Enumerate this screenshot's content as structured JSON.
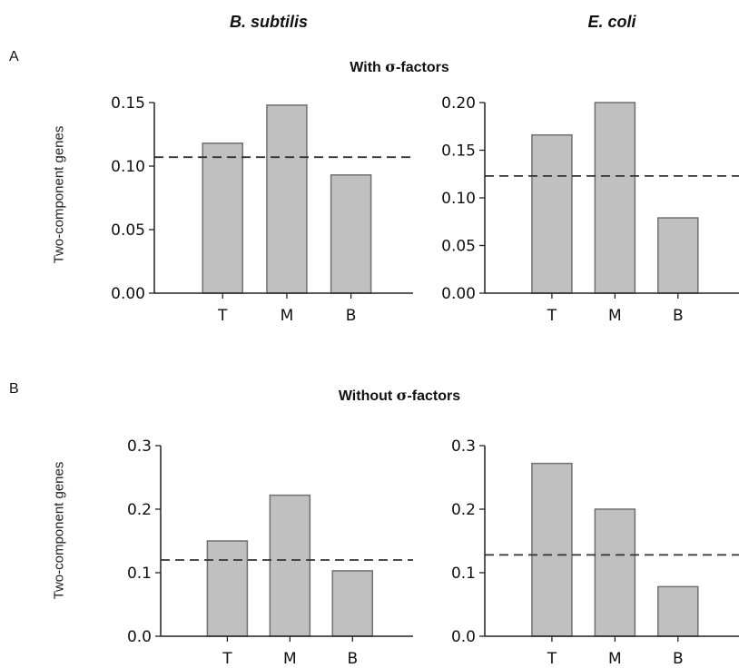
{
  "columns": [
    "B. subtilis",
    "E. coli"
  ],
  "panels": [
    {
      "letter": "A",
      "title_prefix": "With ",
      "title_sigma": "σ",
      "title_suffix": "-factors"
    },
    {
      "letter": "B",
      "title_prefix": "Without ",
      "title_sigma": "σ",
      "title_suffix": "-factors"
    }
  ],
  "ylabel": "Two-component genes",
  "colors": {
    "bar_fill": "#c0c0c0",
    "bar_stroke": "#707070",
    "axis": "#222222",
    "dash": "#333333"
  },
  "chart_data": [
    {
      "type": "bar",
      "panel": "A",
      "organism": "B. subtilis",
      "categories": [
        "T",
        "M",
        "B"
      ],
      "values": [
        0.118,
        0.148,
        0.093
      ],
      "baseline": 0.107,
      "ylim": [
        0,
        0.15
      ],
      "yticks": [
        "0.00",
        "0.05",
        "0.10",
        "0.15"
      ],
      "ylabel": "Two-component genes"
    },
    {
      "type": "bar",
      "panel": "A",
      "organism": "E. coli",
      "categories": [
        "T",
        "M",
        "B"
      ],
      "values": [
        0.166,
        0.2,
        0.079
      ],
      "baseline": 0.123,
      "ylim": [
        0,
        0.2
      ],
      "yticks": [
        "0.00",
        "0.05",
        "0.10",
        "0.15",
        "0.20"
      ],
      "ylabel": ""
    },
    {
      "type": "bar",
      "panel": "B",
      "organism": "B. subtilis",
      "categories": [
        "T",
        "M",
        "B"
      ],
      "values": [
        0.15,
        0.222,
        0.103
      ],
      "baseline": 0.12,
      "ylim": [
        0,
        0.3
      ],
      "yticks": [
        "0.0",
        "0.1",
        "0.2",
        "0.3"
      ],
      "ylabel": "Two-component genes"
    },
    {
      "type": "bar",
      "panel": "B",
      "organism": "E. coli",
      "categories": [
        "T",
        "M",
        "B"
      ],
      "values": [
        0.272,
        0.2,
        0.078
      ],
      "baseline": 0.128,
      "ylim": [
        0,
        0.3
      ],
      "yticks": [
        "0.0",
        "0.1",
        "0.2",
        "0.3"
      ],
      "ylabel": ""
    }
  ]
}
